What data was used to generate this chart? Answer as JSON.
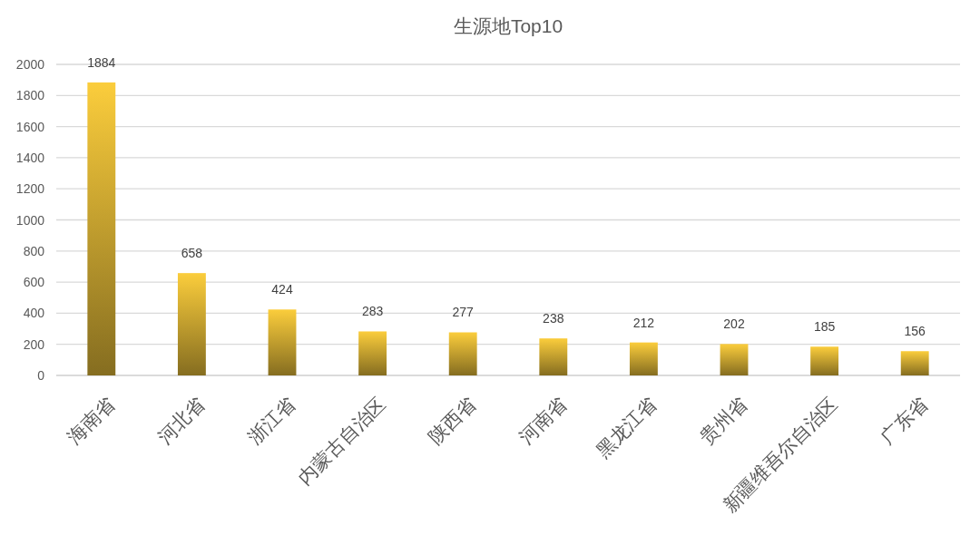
{
  "chart_data": {
    "type": "bar",
    "title": "生源地Top10",
    "categories": [
      "海南省",
      "河北省",
      "浙江省",
      "内蒙古自治区",
      "陕西省",
      "河南省",
      "黑龙江省",
      "贵州省",
      "新疆维吾尔自治区",
      "广东省"
    ],
    "values": [
      1884,
      658,
      424,
      283,
      277,
      238,
      212,
      202,
      185,
      156
    ],
    "color": "#fbcd3c",
    "ylim": [
      0,
      2000
    ],
    "yticks": [
      0,
      200,
      400,
      600,
      800,
      1000,
      1200,
      1400,
      1600,
      1800,
      2000
    ],
    "grid": "y",
    "data_labels": true
  }
}
